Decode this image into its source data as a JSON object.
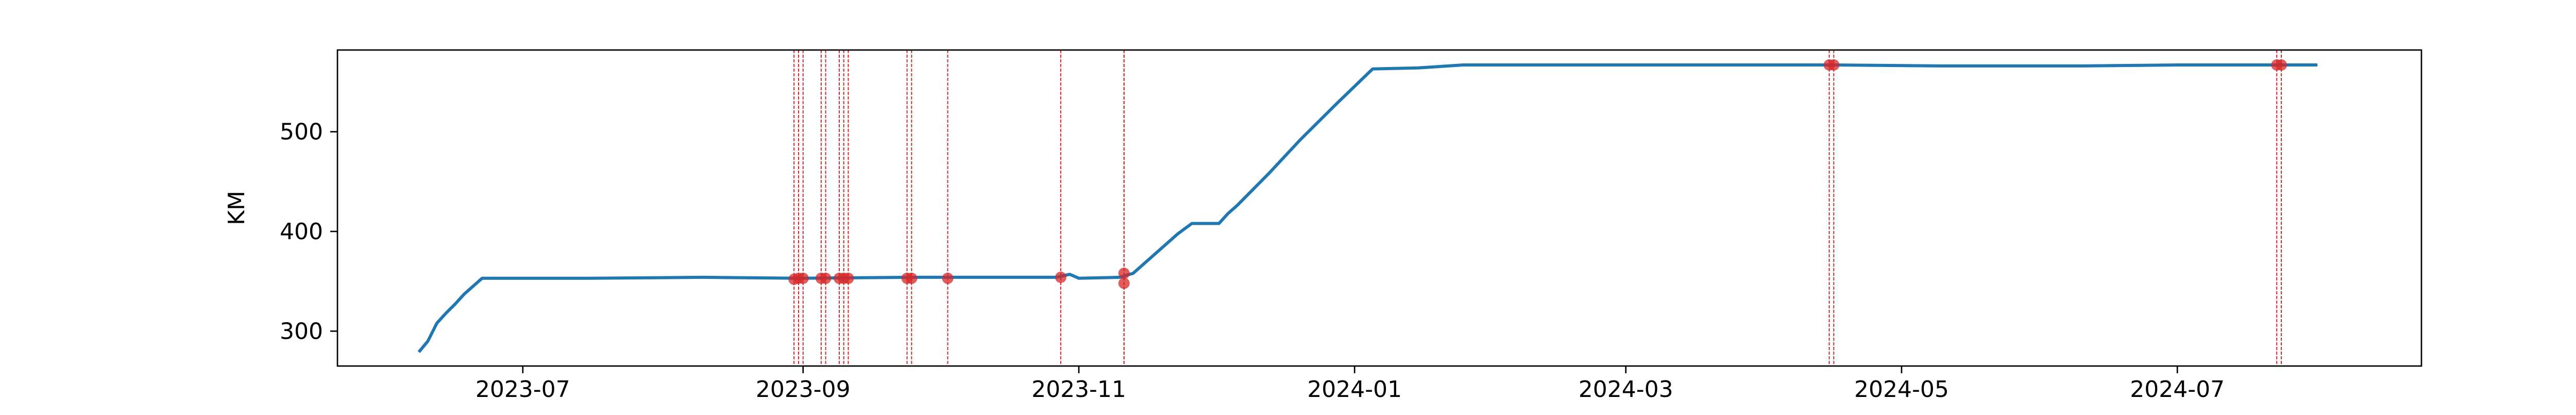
{
  "chart_data": {
    "type": "line",
    "title": "",
    "xlabel": "",
    "ylabel": "KM",
    "x_type": "date",
    "xlim": [
      "2023-05-21",
      "2024-08-24"
    ],
    "ylim": [
      265,
      582
    ],
    "x_ticks": [
      "2023-07-01",
      "2023-09-01",
      "2023-11-01",
      "2024-01-01",
      "2024-03-01",
      "2024-05-01",
      "2024-07-01"
    ],
    "x_tick_labels": [
      "2023-07",
      "2023-09",
      "2023-11",
      "2024-01",
      "2024-03",
      "2024-05",
      "2024-07"
    ],
    "y_ticks": [
      300,
      400,
      500
    ],
    "y_tick_labels": [
      "300",
      "400",
      "500"
    ],
    "grid": false,
    "legend": "none",
    "colors": {
      "line": "#1f77b4",
      "events": "#d62728"
    },
    "series": [
      {
        "values": [
          [
            "2023-06-08",
            279
          ],
          [
            "2023-06-10",
            290
          ],
          [
            "2023-06-12",
            308
          ],
          [
            "2023-06-14",
            318
          ],
          [
            "2023-06-16",
            327
          ],
          [
            "2023-06-18",
            337
          ],
          [
            "2023-06-20",
            345
          ],
          [
            "2023-06-22",
            353
          ],
          [
            "2023-07-15",
            353
          ],
          [
            "2023-08-10",
            354
          ],
          [
            "2023-08-31",
            353
          ],
          [
            "2023-09-25",
            354
          ],
          [
            "2023-10-15",
            354
          ],
          [
            "2023-10-27",
            354
          ],
          [
            "2023-10-30",
            357
          ],
          [
            "2023-11-01",
            353
          ],
          [
            "2023-11-10",
            354
          ],
          [
            "2023-11-13",
            358
          ],
          [
            "2023-11-18",
            378
          ],
          [
            "2023-11-23",
            398
          ],
          [
            "2023-11-26",
            408
          ],
          [
            "2023-12-02",
            408
          ],
          [
            "2023-12-04",
            418
          ],
          [
            "2023-12-06",
            426
          ],
          [
            "2023-12-13",
            458
          ],
          [
            "2023-12-20",
            492
          ],
          [
            "2023-12-28",
            528
          ],
          [
            "2024-01-05",
            563
          ],
          [
            "2024-01-15",
            564
          ],
          [
            "2024-01-25",
            567
          ],
          [
            "2024-02-20",
            567
          ],
          [
            "2024-04-01",
            567
          ],
          [
            "2024-04-16",
            567
          ],
          [
            "2024-05-10",
            566
          ],
          [
            "2024-06-10",
            566
          ],
          [
            "2024-07-01",
            567
          ],
          [
            "2024-07-23",
            567
          ],
          [
            "2024-08-01",
            567
          ]
        ]
      }
    ],
    "event_markers": [
      [
        "2023-08-30",
        352
      ],
      [
        "2023-08-31",
        353
      ],
      [
        "2023-09-01",
        353
      ],
      [
        "2023-09-05",
        353
      ],
      [
        "2023-09-06",
        353
      ],
      [
        "2023-09-09",
        353
      ],
      [
        "2023-09-10",
        353
      ],
      [
        "2023-09-11",
        353
      ],
      [
        "2023-09-24",
        353
      ],
      [
        "2023-09-25",
        353
      ],
      [
        "2023-10-03",
        353
      ],
      [
        "2023-10-28",
        354
      ],
      [
        "2023-11-11",
        358
      ],
      [
        "2023-11-11",
        348
      ],
      [
        "2024-04-15",
        567
      ],
      [
        "2024-04-16",
        567
      ],
      [
        "2024-07-23",
        567
      ],
      [
        "2024-07-24",
        567
      ]
    ]
  }
}
